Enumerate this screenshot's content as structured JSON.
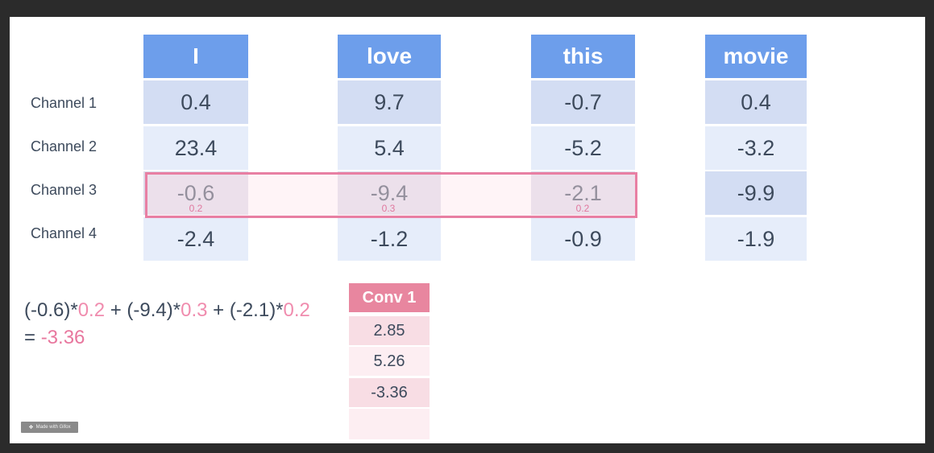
{
  "words": [
    "I",
    "love",
    "this",
    "movie"
  ],
  "channels": [
    "Channel 1",
    "Channel 2",
    "Channel 3",
    "Channel 4"
  ],
  "values": [
    [
      "0.4",
      "23.4",
      "-0.6",
      "-2.4"
    ],
    [
      "9.7",
      "5.4",
      "-9.4",
      "-1.2"
    ],
    [
      "-0.7",
      "-5.2",
      "-2.1",
      "-0.9"
    ],
    [
      "0.4",
      "-3.2",
      "-9.9",
      "-1.9"
    ]
  ],
  "kernel": {
    "channel": "Channel 3",
    "weights": [
      "0.2",
      "0.3",
      "0.2"
    ]
  },
  "formula": {
    "term1_value": "(-0.6)*",
    "term1_weight": "0.2",
    "plus1": " + ",
    "term2_value": "(-9.4)*",
    "term2_weight": "0.3",
    "plus2": " + ",
    "term3_value": "(-2.1)*",
    "term3_weight": "0.2",
    "equals": "= ",
    "result": "-3.36"
  },
  "conv": {
    "header": "Conv 1",
    "values": [
      "2.85",
      "5.26",
      "-3.36",
      ""
    ]
  },
  "watermark": "Made with Gifox",
  "colors": {
    "word_header": "#6d9eeb",
    "cell_dark": "#d3ddf3",
    "cell_light": "#e6edfa",
    "kernel_border": "#e87fa3",
    "conv_header": "#e8869f",
    "pink_text": "#f08cae"
  }
}
